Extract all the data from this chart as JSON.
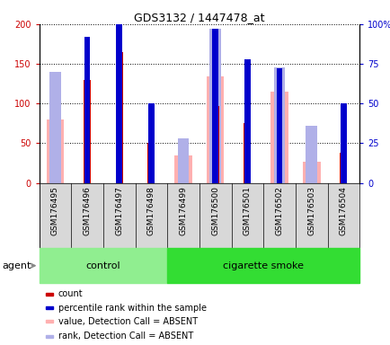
{
  "title": "GDS3132 / 1447478_at",
  "samples": [
    "GSM176495",
    "GSM176496",
    "GSM176497",
    "GSM176498",
    "GSM176499",
    "GSM176500",
    "GSM176501",
    "GSM176502",
    "GSM176503",
    "GSM176504"
  ],
  "groups": [
    "control",
    "control",
    "control",
    "control",
    "cigarette smoke",
    "cigarette smoke",
    "cigarette smoke",
    "cigarette smoke",
    "cigarette smoke",
    "cigarette smoke"
  ],
  "count": [
    0,
    130,
    165,
    50,
    0,
    97,
    75,
    0,
    0,
    38
  ],
  "percentile_rank": [
    0,
    92,
    105,
    50,
    0,
    97,
    78,
    72,
    0,
    50
  ],
  "value_absent": [
    80,
    0,
    0,
    0,
    35,
    134,
    0,
    115,
    27,
    0
  ],
  "rank_absent": [
    70,
    0,
    0,
    0,
    28,
    97,
    0,
    73,
    36,
    0
  ],
  "ylim_left": [
    0,
    200
  ],
  "ylim_right": [
    0,
    100
  ],
  "yticks_left": [
    0,
    50,
    100,
    150,
    200
  ],
  "yticks_right": [
    0,
    25,
    50,
    75,
    100
  ],
  "ytick_labels_right": [
    "0",
    "25",
    "50",
    "75",
    "100%"
  ],
  "color_count": "#cc0000",
  "color_rank": "#0000cc",
  "color_value_absent": "#ffb0b0",
  "color_rank_absent": "#b0b0e8",
  "bg_control": "#90ee90",
  "bg_smoke": "#33dd33",
  "control_label": "control",
  "smoke_label": "cigarette smoke",
  "agent_label": "agent",
  "legend_entries": [
    "count",
    "percentile rank within the sample",
    "value, Detection Call = ABSENT",
    "rank, Detection Call = ABSENT"
  ]
}
